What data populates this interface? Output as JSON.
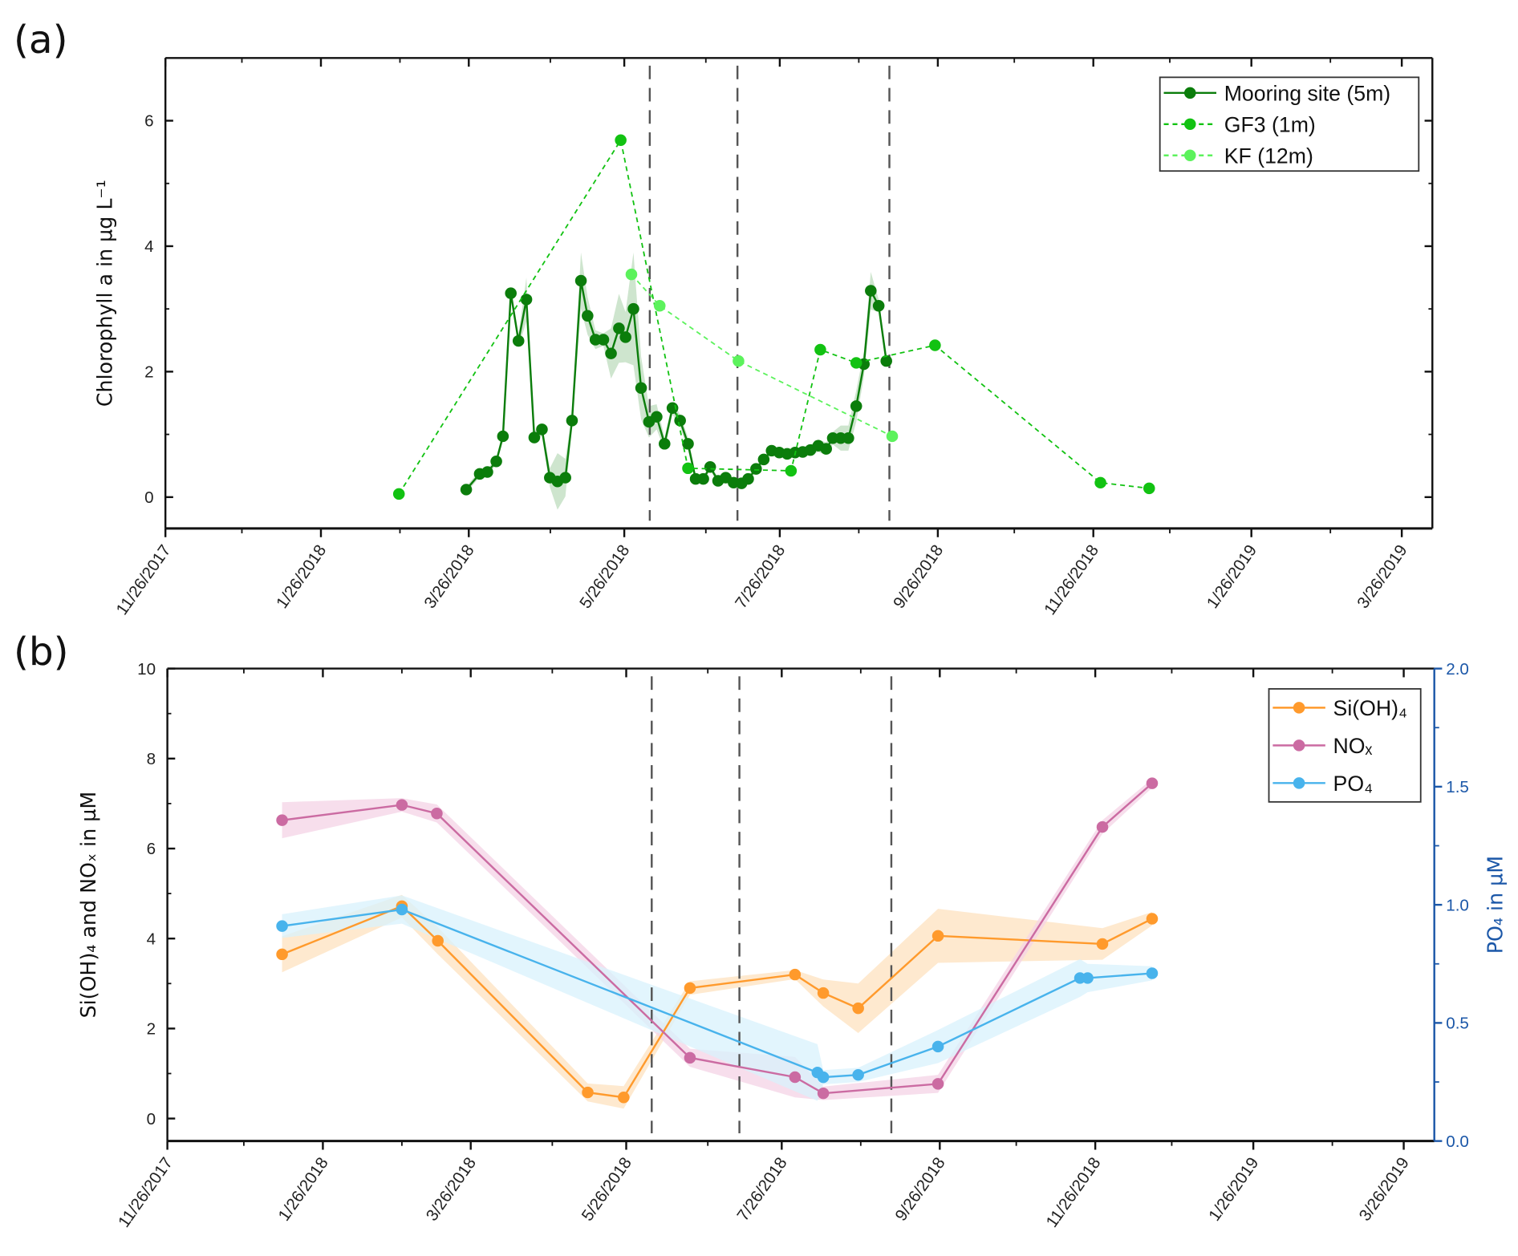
{
  "chart_data": [
    {
      "type": "line",
      "panel_label": "(a)",
      "x_unit": "days since 11/26/2017",
      "xlim": [
        0,
        497
      ],
      "x_ticks": [
        0,
        61,
        119,
        180,
        241,
        303,
        364,
        426,
        485
      ],
      "x_tick_labels": [
        "11/26/2017",
        "1/26/2018",
        "3/26/2018",
        "5/26/2018",
        "7/26/2018",
        "9/26/2018",
        "11/26/2018",
        "1/26/2019",
        "3/26/2019"
      ],
      "ylabel": "Chlorophyll a in µg L⁻¹",
      "ylim": [
        -0.5,
        7
      ],
      "y_ticks": [
        0,
        2,
        4,
        6
      ],
      "y_tick_labels": [
        "0",
        "2",
        "4",
        "6"
      ],
      "vlines": [
        190,
        224.4,
        284
      ],
      "legend_position": "top-right",
      "series": [
        {
          "name": "Mooring site (5m)",
          "color": "#0b7d0b",
          "style": "solid",
          "axis": "left",
          "x": [
            118,
            123.3,
            126.3,
            129.8,
            132.4,
            135.5,
            138.5,
            141.6,
            144.7,
            147.7,
            150.8,
            153.8,
            156.9,
            159.5,
            163,
            165.6,
            168.7,
            171.8,
            174.8,
            177.9,
            180.5,
            183.6,
            186.6,
            189.7,
            192.7,
            195.8,
            198.9,
            201.9,
            205,
            208,
            211,
            213.7,
            216.8,
            219.8,
            222.9,
            226,
            228.6,
            231.7,
            234.7,
            237.8,
            240.8,
            243.9,
            247,
            250,
            253,
            256.1,
            259.2,
            261.8,
            264.9,
            267.9,
            271,
            274,
            276.7,
            279.8,
            282.8
          ],
          "y": [
            0.12,
            0.37,
            0.4,
            0.57,
            0.97,
            3.25,
            2.49,
            3.15,
            0.95,
            1.08,
            0.31,
            0.25,
            0.31,
            1.22,
            3.45,
            2.89,
            2.51,
            2.51,
            2.29,
            2.69,
            2.55,
            3.0,
            1.74,
            1.2,
            1.28,
            0.85,
            1.42,
            1.22,
            0.85,
            0.29,
            0.29,
            0.48,
            0.26,
            0.31,
            0.23,
            0.22,
            0.29,
            0.45,
            0.6,
            0.74,
            0.71,
            0.69,
            0.71,
            0.72,
            0.75,
            0.82,
            0.77,
            0.94,
            0.94,
            0.94,
            1.45,
            2.12,
            3.29,
            3.05,
            2.17
          ],
          "err": [
            0.05,
            0.05,
            0.05,
            0.05,
            0.08,
            0.1,
            0.1,
            0.35,
            0.1,
            0.1,
            0.15,
            0.45,
            0.3,
            0.1,
            0.45,
            0.3,
            0.15,
            0.1,
            0.4,
            0.55,
            0.4,
            0.9,
            0.5,
            0.25,
            0.2,
            0.1,
            0.1,
            0.1,
            0.1,
            0.08,
            0.05,
            0.05,
            0.05,
            0.05,
            0.05,
            0.05,
            0.05,
            0.05,
            0.05,
            0.05,
            0.05,
            0.05,
            0.05,
            0.05,
            0.08,
            0.1,
            0.1,
            0.1,
            0.2,
            0.2,
            0.25,
            0.2,
            0.3,
            0.1,
            0.1
          ]
        },
        {
          "name": "GF3 (1m)",
          "color": "#12c212",
          "style": "dashed",
          "axis": "left",
          "x": [
            91.6,
            178.6,
            205,
            245.4,
            256.9,
            271,
            301.9,
            366.8,
            385.9
          ],
          "y": [
            0.05,
            5.69,
            0.46,
            0.42,
            2.35,
            2.14,
            2.42,
            0.23,
            0.14
          ]
        },
        {
          "name": "KF (12m)",
          "color": "#5cf25c",
          "style": "dashed",
          "axis": "left",
          "x": [
            182.8,
            193.9,
            224.8,
            285.1
          ],
          "y": [
            3.55,
            3.05,
            2.17,
            0.97
          ]
        }
      ]
    },
    {
      "type": "line",
      "panel_label": "(b)",
      "x_unit": "days since 11/26/2017",
      "xlim": [
        0,
        497
      ],
      "x_ticks": [
        0,
        61,
        119,
        180,
        241,
        303,
        364,
        426,
        485
      ],
      "x_tick_labels": [
        "11/26/2017",
        "1/26/2018",
        "3/26/2018",
        "5/26/2018",
        "7/26/2018",
        "9/26/2018",
        "11/26/2018",
        "1/26/2019",
        "3/26/2019"
      ],
      "ylabel": "Si(OH)₄ and NOₓ in µM",
      "ylim": [
        -0.5,
        10
      ],
      "y_ticks": [
        0,
        2,
        4,
        6,
        8,
        10
      ],
      "y_tick_labels": [
        "0",
        "2",
        "4",
        "6",
        "8",
        "10"
      ],
      "y2label": "PO₄ in µM",
      "y2lim": [
        0,
        2
      ],
      "y2_ticks": [
        0,
        0.5,
        1,
        1.5,
        2
      ],
      "y2_tick_labels": [
        "0.0",
        "0.5",
        "1.0",
        "1.5",
        "2.0"
      ],
      "y2_color": "#1b57a8",
      "vlines": [
        190,
        224.4,
        284
      ],
      "legend_position": "top-right",
      "series": [
        {
          "name": "Si(OH)₄",
          "color": "#ff9a2c",
          "band": "#fde2bf",
          "style": "solid",
          "axis": "left",
          "x": [
            45,
            92,
            106.1,
            164.9,
            179,
            205,
            246.2,
            257.3,
            271,
            302.3,
            366.8,
            386.3
          ],
          "y": [
            3.65,
            4.72,
            3.95,
            0.58,
            0.47,
            2.9,
            3.2,
            2.79,
            2.45,
            4.06,
            3.88,
            4.44
          ],
          "err": [
            0.4,
            0.25,
            0.3,
            0.2,
            0.25,
            0.15,
            0.1,
            0.3,
            0.55,
            0.6,
            0.35,
            0.15
          ]
        },
        {
          "name": "NOₓ",
          "color": "#cb6ba2",
          "band": "#f4d3e6",
          "style": "solid",
          "axis": "left",
          "x": [
            45,
            92,
            105.7,
            205,
            246.2,
            257.3,
            302.3,
            366.8,
            386.3
          ],
          "y": [
            6.63,
            6.97,
            6.78,
            1.35,
            0.92,
            0.56,
            0.77,
            6.48,
            7.45
          ],
          "err": [
            0.4,
            0.15,
            0.2,
            0.2,
            0.45,
            0.15,
            0.2,
            0.15,
            0.1
          ]
        },
        {
          "name": "PO₄",
          "color": "#48b3ec",
          "band": "#d8f1fc",
          "style": "solid",
          "axis": "right",
          "x": [
            45,
            92,
            255,
            257.3,
            271,
            302.3,
            358,
            361,
            386.3
          ],
          "y": [
            0.91,
            0.98,
            0.29,
            0.27,
            0.28,
            0.4,
            0.69,
            0.69,
            0.71
          ],
          "err": [
            0.05,
            0.06,
            0.12,
            0.03,
            0.03,
            0.07,
            0.08,
            0.06,
            0.03
          ]
        }
      ]
    }
  ]
}
